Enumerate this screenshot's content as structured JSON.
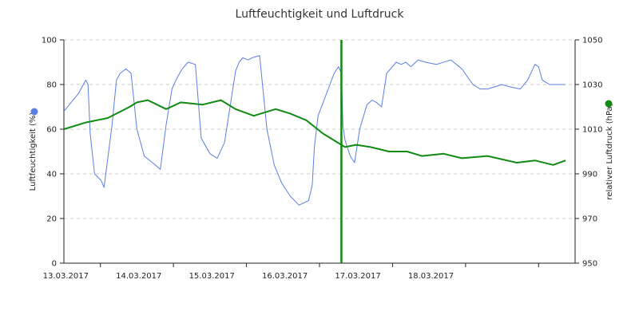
{
  "chart_data": {
    "type": "line",
    "title": "Luftfeuchtigkeit und Luftdruck",
    "x_axis": {
      "ticks": [
        "13.03.2017",
        "14.03.2017",
        "15.03.2017",
        "16.03.2017",
        "17.03.2017",
        "18.03.2017"
      ],
      "range_days": [
        0,
        7
      ]
    },
    "y_left": {
      "label": "Luftfeuchtigkeit (%)",
      "ylim": [
        0,
        100
      ],
      "ticks": [
        "0",
        "20",
        "40",
        "60",
        "80",
        "100"
      ]
    },
    "y_right": {
      "label": "relativer Luftdruck (hPa)",
      "ylim": [
        950,
        1050
      ],
      "ticks": [
        "950",
        "970",
        "990",
        "1010",
        "1030",
        "1050"
      ]
    },
    "grid": true,
    "series": [
      {
        "name": "Luftfeuchtigkeit (%)",
        "axis": "left",
        "color": "#5b7ee5",
        "x": [
          0,
          0.1,
          0.2,
          0.3,
          0.33,
          0.36,
          0.42,
          0.48,
          0.51,
          0.55,
          0.66,
          0.72,
          0.77,
          0.85,
          0.92,
          1.0,
          1.1,
          1.25,
          1.32,
          1.4,
          1.48,
          1.55,
          1.62,
          1.7,
          1.8,
          1.88,
          2.0,
          2.1,
          2.2,
          2.35,
          2.4,
          2.45,
          2.52,
          2.58,
          2.68,
          2.78,
          2.88,
          2.98,
          3.1,
          3.22,
          3.35,
          3.4,
          3.43,
          3.48,
          3.55,
          3.7,
          3.76,
          3.8,
          3.82,
          3.85,
          3.92,
          3.98,
          4.05,
          4.15,
          4.22,
          4.28,
          4.35,
          4.42,
          4.55,
          4.62,
          4.68,
          4.75,
          4.85,
          4.95,
          5.1,
          5.3,
          5.45,
          5.6,
          5.7,
          5.8,
          6.0,
          6.1,
          6.25,
          6.35,
          6.45,
          6.5,
          6.55,
          6.6,
          6.65,
          6.72,
          6.8,
          6.87
        ],
        "y": [
          68,
          72,
          76,
          82,
          80,
          58,
          40,
          38,
          37,
          34,
          62,
          82,
          85,
          87,
          85,
          60,
          48,
          44,
          42,
          62,
          78,
          83,
          87,
          90,
          89,
          56,
          49,
          47,
          54,
          86,
          90,
          92,
          91,
          92,
          93,
          60,
          44,
          36,
          30,
          26,
          28,
          35,
          52,
          66,
          72,
          85,
          88,
          85,
          62,
          55,
          48,
          45,
          60,
          71,
          73,
          72,
          70,
          85,
          90,
          89,
          90,
          88,
          91,
          90,
          89,
          91,
          87,
          80,
          78,
          78,
          80,
          79,
          78,
          82,
          89,
          88,
          82,
          81,
          80,
          80,
          80,
          80
        ]
      },
      {
        "name": "relativer Luftdruck (hPa)",
        "axis": "right",
        "color": "#108a10",
        "x": [
          0,
          0.3,
          0.6,
          0.9,
          1.0,
          1.15,
          1.4,
          1.6,
          1.9,
          2.15,
          2.35,
          2.6,
          2.9,
          3.1,
          3.32,
          3.55,
          3.7,
          3.8,
          3.85,
          4.0,
          4.2,
          4.45,
          4.7,
          4.9,
          5.2,
          5.45,
          5.8,
          6.2,
          6.45,
          6.7,
          6.87
        ],
        "y": [
          1010,
          1013,
          1015,
          1020,
          1022,
          1023,
          1019,
          1022,
          1021,
          1023,
          1019,
          1016,
          1019,
          1017,
          1014,
          1008,
          1005,
          1003,
          1002,
          1003,
          1002,
          1000,
          1000,
          998,
          999,
          997,
          998,
          995,
          996,
          994,
          996
        ]
      }
    ],
    "spike": {
      "series": "relativer Luftdruck (hPa)",
      "x": 3.8,
      "y_values": [
        950,
        1050
      ]
    },
    "legend_markers": [
      {
        "series": "Luftfeuchtigkeit (%)",
        "color": "#5b7ee5",
        "position": "left"
      },
      {
        "series": "relativer Luftdruck (hPa)",
        "color": "#108a10",
        "position": "right"
      }
    ]
  }
}
